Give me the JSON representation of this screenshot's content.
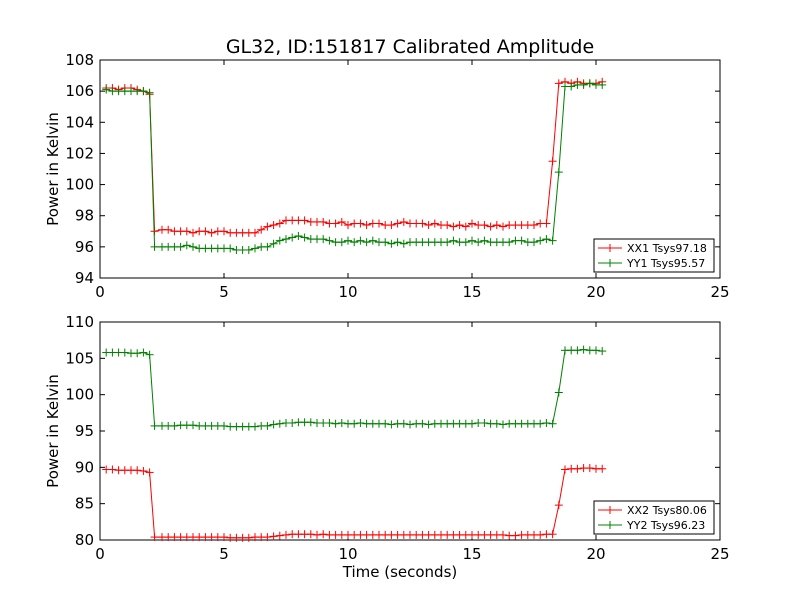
{
  "figure": {
    "title": "GL32, ID:151817 Calibrated Amplitude"
  },
  "chart_data": [
    {
      "type": "line",
      "ylabel": "Power in Kelvin",
      "xlabel": "",
      "xlim": [
        0,
        25
      ],
      "ylim": [
        94,
        108
      ],
      "xticks": [
        "0",
        "5",
        "10",
        "15",
        "20",
        "25"
      ],
      "yticks": [
        "94",
        "96",
        "98",
        "100",
        "102",
        "104",
        "106",
        "108"
      ],
      "legend_position": "lower-right",
      "grid": false,
      "series": [
        {
          "name": "XX1 Tsys97.18",
          "color": "#ff0000",
          "x": [
            0.25,
            0.5,
            0.75,
            1.0,
            1.25,
            1.5,
            1.75,
            2.0,
            2.2,
            2.5,
            2.75,
            3.0,
            3.25,
            3.5,
            3.75,
            4.0,
            4.25,
            4.5,
            4.75,
            5.0,
            5.25,
            5.5,
            5.75,
            6.0,
            6.25,
            6.5,
            6.75,
            7.0,
            7.25,
            7.5,
            7.75,
            8.0,
            8.25,
            8.5,
            8.75,
            9.0,
            9.25,
            9.5,
            9.75,
            10.0,
            10.25,
            10.5,
            10.75,
            11.0,
            11.25,
            11.5,
            11.75,
            12.0,
            12.25,
            12.5,
            12.75,
            13.0,
            13.25,
            13.5,
            13.75,
            14.0,
            14.25,
            14.5,
            14.75,
            15.0,
            15.25,
            15.5,
            15.75,
            16.0,
            16.25,
            16.5,
            16.75,
            17.0,
            17.25,
            17.5,
            17.75,
            18.0,
            18.25,
            18.5,
            18.75,
            19.0,
            19.25,
            19.5,
            19.75,
            20.0,
            20.25
          ],
          "y": [
            106.2,
            106.2,
            106.1,
            106.2,
            106.2,
            106.1,
            106.0,
            105.8,
            97.0,
            97.1,
            97.1,
            97.0,
            97.0,
            97.0,
            96.9,
            97.0,
            97.0,
            96.9,
            97.0,
            97.0,
            96.9,
            96.9,
            96.9,
            96.9,
            96.9,
            97.1,
            97.3,
            97.4,
            97.5,
            97.7,
            97.7,
            97.7,
            97.7,
            97.6,
            97.6,
            97.6,
            97.5,
            97.5,
            97.6,
            97.4,
            97.5,
            97.5,
            97.4,
            97.5,
            97.5,
            97.4,
            97.4,
            97.5,
            97.6,
            97.5,
            97.5,
            97.5,
            97.4,
            97.5,
            97.4,
            97.4,
            97.3,
            97.4,
            97.3,
            97.5,
            97.4,
            97.4,
            97.3,
            97.4,
            97.3,
            97.4,
            97.4,
            97.4,
            97.4,
            97.4,
            97.5,
            97.5,
            101.5,
            106.5,
            106.6,
            106.5,
            106.6,
            106.5,
            106.5,
            106.5,
            106.6
          ]
        },
        {
          "name": "YY1 Tsys95.57",
          "color": "#008000",
          "x": [
            0.25,
            0.5,
            0.75,
            1.0,
            1.25,
            1.5,
            1.75,
            2.0,
            2.2,
            2.5,
            2.75,
            3.0,
            3.25,
            3.5,
            3.75,
            4.0,
            4.25,
            4.5,
            4.75,
            5.0,
            5.25,
            5.5,
            5.75,
            6.0,
            6.25,
            6.5,
            6.75,
            7.0,
            7.25,
            7.5,
            7.75,
            8.0,
            8.25,
            8.5,
            8.75,
            9.0,
            9.25,
            9.5,
            9.75,
            10.0,
            10.25,
            10.5,
            10.75,
            11.0,
            11.25,
            11.5,
            11.75,
            12.0,
            12.25,
            12.5,
            12.75,
            13.0,
            13.25,
            13.5,
            13.75,
            14.0,
            14.25,
            14.5,
            14.75,
            15.0,
            15.25,
            15.5,
            15.75,
            16.0,
            16.25,
            16.5,
            16.75,
            17.0,
            17.25,
            17.5,
            17.75,
            18.0,
            18.25,
            18.5,
            18.75,
            19.0,
            19.25,
            19.5,
            19.75,
            20.0,
            20.25
          ],
          "y": [
            106.1,
            106.0,
            106.0,
            106.0,
            106.0,
            106.0,
            106.0,
            105.9,
            96.0,
            96.0,
            96.0,
            96.0,
            96.0,
            96.1,
            96.0,
            95.9,
            95.9,
            95.9,
            95.9,
            95.9,
            95.9,
            95.8,
            95.8,
            95.8,
            95.9,
            96.0,
            96.0,
            96.2,
            96.4,
            96.5,
            96.6,
            96.7,
            96.6,
            96.5,
            96.5,
            96.5,
            96.4,
            96.3,
            96.3,
            96.4,
            96.3,
            96.4,
            96.3,
            96.4,
            96.3,
            96.3,
            96.2,
            96.3,
            96.2,
            96.3,
            96.3,
            96.3,
            96.3,
            96.3,
            96.3,
            96.3,
            96.4,
            96.3,
            96.3,
            96.4,
            96.3,
            96.4,
            96.3,
            96.3,
            96.3,
            96.3,
            96.4,
            96.4,
            96.3,
            96.3,
            96.4,
            96.5,
            96.4,
            100.8,
            106.3,
            106.3,
            106.4,
            106.4,
            106.5,
            106.4,
            106.4
          ]
        }
      ]
    },
    {
      "type": "line",
      "ylabel": "Power in Kelvin",
      "xlabel": "Time (seconds)",
      "xlim": [
        0,
        25
      ],
      "ylim": [
        80,
        110
      ],
      "xticks": [
        "0",
        "5",
        "10",
        "15",
        "20",
        "25"
      ],
      "yticks": [
        "80",
        "85",
        "90",
        "95",
        "100",
        "105",
        "110"
      ],
      "legend_position": "lower-right",
      "grid": false,
      "series": [
        {
          "name": "XX2 Tsys80.06",
          "color": "#ff0000",
          "x": [
            0.25,
            0.5,
            0.75,
            1.0,
            1.25,
            1.5,
            1.75,
            2.0,
            2.2,
            2.5,
            2.75,
            3.0,
            3.25,
            3.5,
            3.75,
            4.0,
            4.25,
            4.5,
            4.75,
            5.0,
            5.25,
            5.5,
            5.75,
            6.0,
            6.25,
            6.5,
            6.75,
            7.0,
            7.25,
            7.5,
            7.75,
            8.0,
            8.25,
            8.5,
            8.75,
            9.0,
            9.25,
            9.5,
            9.75,
            10.0,
            10.25,
            10.5,
            10.75,
            11.0,
            11.25,
            11.5,
            11.75,
            12.0,
            12.25,
            12.5,
            12.75,
            13.0,
            13.25,
            13.5,
            13.75,
            14.0,
            14.25,
            14.5,
            14.75,
            15.0,
            15.25,
            15.5,
            15.75,
            16.0,
            16.25,
            16.5,
            16.75,
            17.0,
            17.25,
            17.5,
            17.75,
            18.0,
            18.25,
            18.5,
            18.75,
            19.0,
            19.25,
            19.5,
            19.75,
            20.0,
            20.25
          ],
          "y": [
            89.7,
            89.7,
            89.6,
            89.6,
            89.6,
            89.6,
            89.5,
            89.3,
            80.4,
            80.4,
            80.4,
            80.4,
            80.4,
            80.4,
            80.4,
            80.4,
            80.4,
            80.4,
            80.4,
            80.4,
            80.3,
            80.3,
            80.3,
            80.3,
            80.4,
            80.4,
            80.4,
            80.5,
            80.6,
            80.7,
            80.8,
            80.8,
            80.8,
            80.8,
            80.7,
            80.8,
            80.7,
            80.7,
            80.7,
            80.7,
            80.7,
            80.7,
            80.7,
            80.7,
            80.7,
            80.7,
            80.7,
            80.7,
            80.7,
            80.7,
            80.7,
            80.7,
            80.7,
            80.7,
            80.7,
            80.7,
            80.7,
            80.7,
            80.7,
            80.7,
            80.7,
            80.7,
            80.7,
            80.7,
            80.7,
            80.6,
            80.6,
            80.7,
            80.7,
            80.7,
            80.7,
            80.8,
            80.8,
            84.8,
            89.7,
            89.8,
            89.8,
            89.9,
            89.9,
            89.8,
            89.8
          ]
        },
        {
          "name": "YY2 Tsys96.23",
          "color": "#008000",
          "x": [
            0.25,
            0.5,
            0.75,
            1.0,
            1.25,
            1.5,
            1.75,
            2.0,
            2.2,
            2.5,
            2.75,
            3.0,
            3.25,
            3.5,
            3.75,
            4.0,
            4.25,
            4.5,
            4.75,
            5.0,
            5.25,
            5.5,
            5.75,
            6.0,
            6.25,
            6.5,
            6.75,
            7.0,
            7.25,
            7.5,
            7.75,
            8.0,
            8.25,
            8.5,
            8.75,
            9.0,
            9.25,
            9.5,
            9.75,
            10.0,
            10.25,
            10.5,
            10.75,
            11.0,
            11.25,
            11.5,
            11.75,
            12.0,
            12.25,
            12.5,
            12.75,
            13.0,
            13.25,
            13.5,
            13.75,
            14.0,
            14.25,
            14.5,
            14.75,
            15.0,
            15.25,
            15.5,
            15.75,
            16.0,
            16.25,
            16.5,
            16.75,
            17.0,
            17.25,
            17.5,
            17.75,
            18.0,
            18.25,
            18.5,
            18.75,
            19.0,
            19.25,
            19.5,
            19.75,
            20.0,
            20.25
          ],
          "y": [
            105.8,
            105.8,
            105.8,
            105.8,
            105.7,
            105.7,
            105.8,
            105.5,
            95.7,
            95.7,
            95.7,
            95.7,
            95.8,
            95.8,
            95.8,
            95.7,
            95.7,
            95.7,
            95.7,
            95.7,
            95.6,
            95.6,
            95.6,
            95.6,
            95.6,
            95.7,
            95.7,
            95.9,
            96.0,
            96.1,
            96.1,
            96.2,
            96.2,
            96.2,
            96.1,
            96.1,
            96.1,
            96.0,
            96.1,
            96.0,
            96.0,
            96.1,
            96.0,
            96.0,
            96.0,
            96.0,
            95.9,
            96.0,
            96.0,
            95.9,
            96.0,
            96.0,
            95.9,
            96.0,
            96.0,
            96.0,
            96.0,
            96.0,
            96.0,
            96.0,
            96.1,
            96.1,
            96.0,
            96.0,
            95.9,
            96.0,
            96.0,
            96.0,
            96.0,
            96.0,
            96.0,
            96.1,
            96.0,
            100.3,
            106.1,
            106.1,
            106.1,
            106.2,
            106.1,
            106.1,
            106.0
          ]
        }
      ]
    }
  ]
}
